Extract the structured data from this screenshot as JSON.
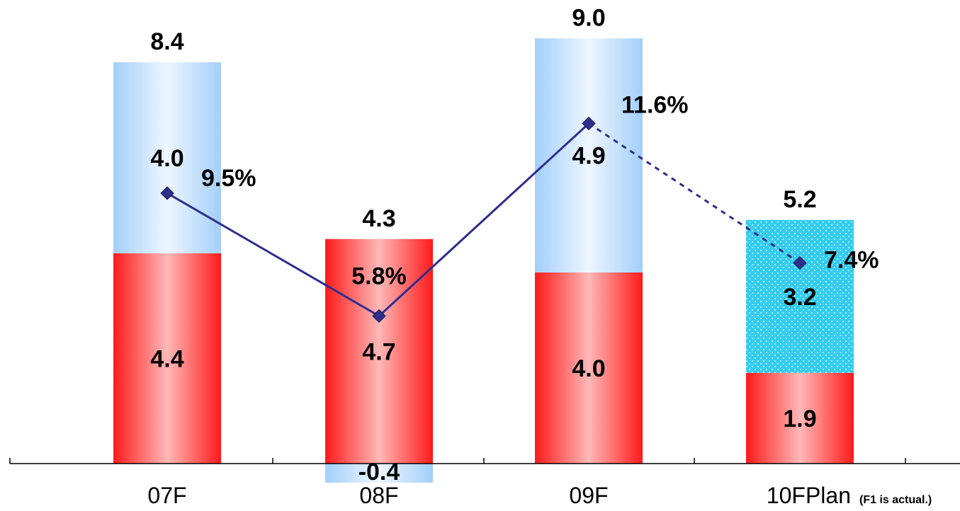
{
  "chart_data": {
    "type": "bar",
    "stacked": true,
    "categories": [
      "07F",
      "08F",
      "09F",
      "10FPlan"
    ],
    "series": [
      {
        "values": [
          4.4,
          4.7,
          4.0,
          1.9
        ],
        "color": "#ff2a2a"
      },
      {
        "values": [
          4.0,
          -0.4,
          4.9,
          3.2
        ],
        "color": "#a9d2fb"
      }
    ],
    "totals": [
      8.4,
      4.3,
      9.0,
      5.2
    ],
    "line_series": {
      "values": [
        9.5,
        5.8,
        11.6,
        7.4
      ],
      "labels": [
        "9.5%",
        "5.8%",
        "11.6%",
        "7.4%"
      ],
      "color": "#2e2e8c",
      "dashed_last_segment": true
    },
    "plan_bar_pattern": "dotted-cyan",
    "footnote": "(F1 is actual.)",
    "ylim": [
      -0.8,
      9.2
    ],
    "grid": false,
    "legend": "none"
  },
  "colors": {
    "axis": "#000000",
    "plan_fill": "#33ccee"
  }
}
